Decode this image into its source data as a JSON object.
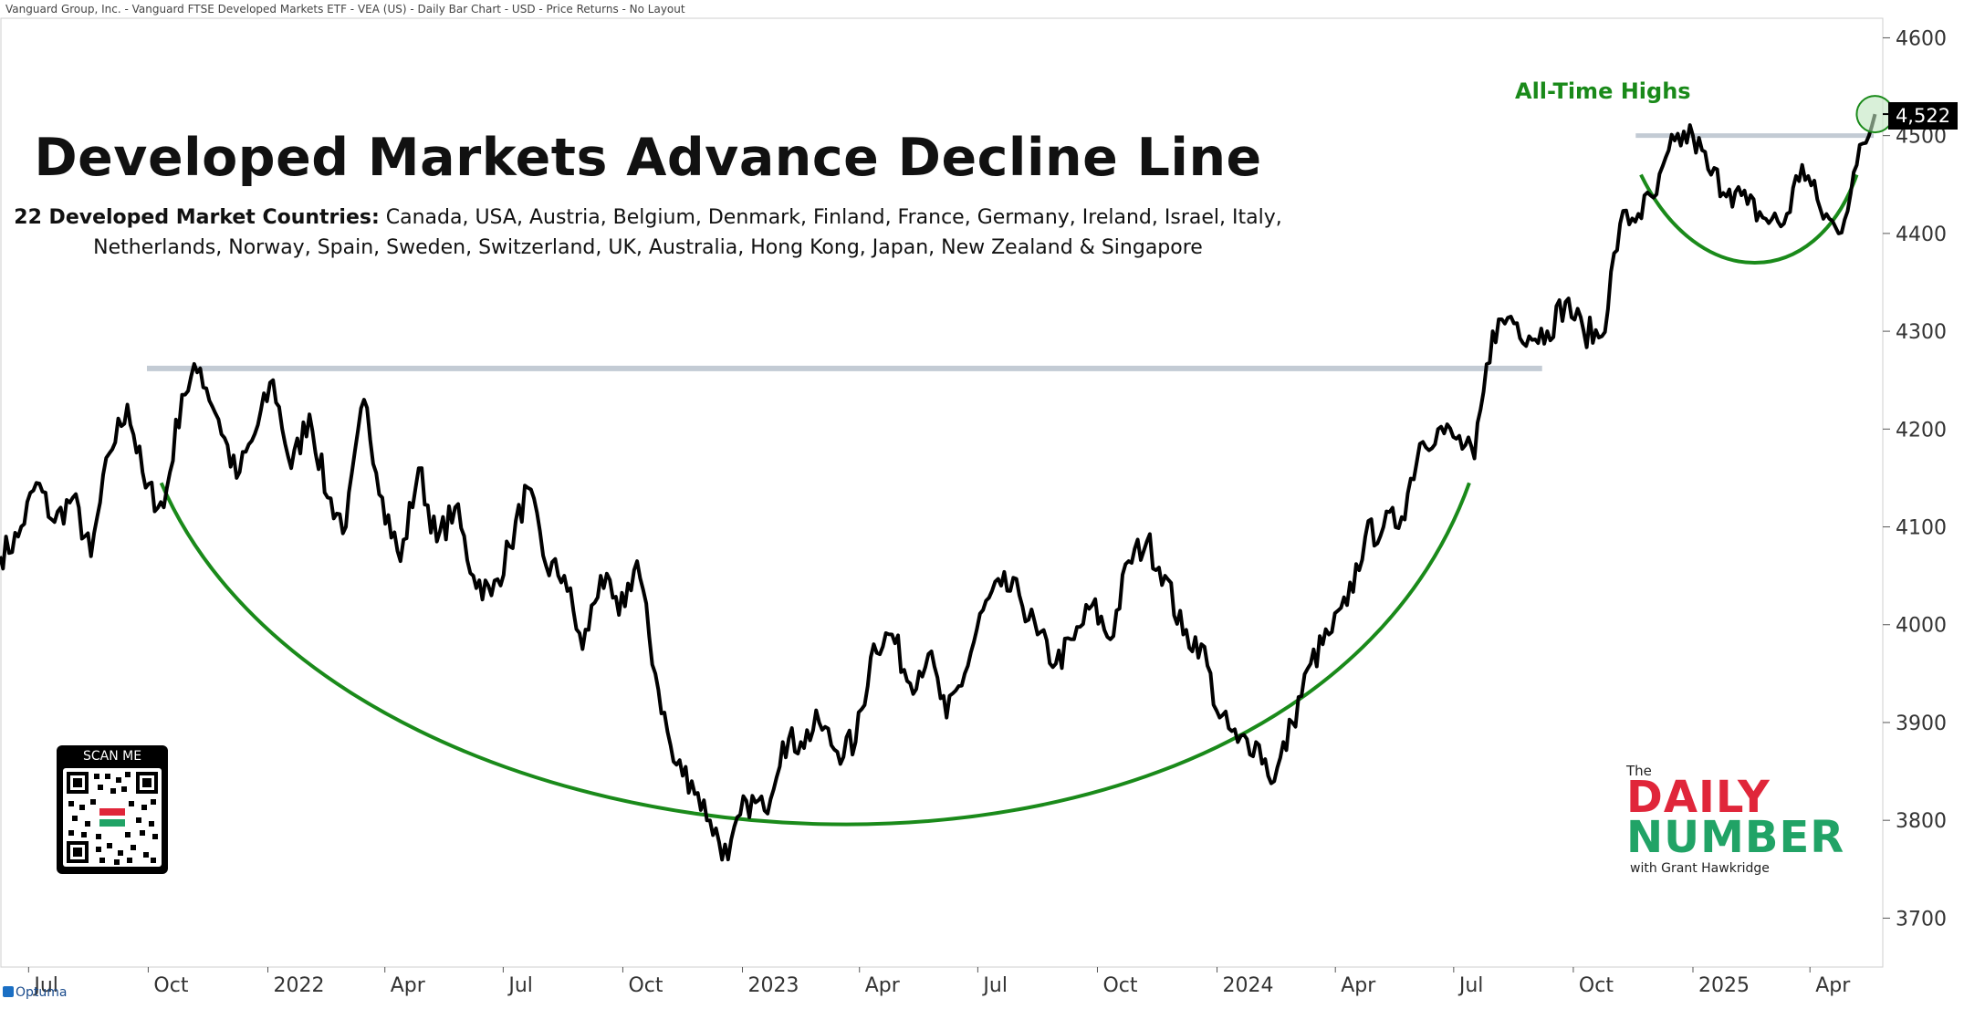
{
  "header": {
    "text": "Vanguard Group, Inc. - Vanguard FTSE Developed Markets ETF - VEA (US) - Daily Bar Chart - USD - Price Returns - No Layout"
  },
  "title": "Developed Markets Advance Decline Line",
  "countries": {
    "label": "22 Developed Market Countries:",
    "line1": " Canada, USA, Austria, Belgium, Denmark, Finland, France, Germany, Ireland, Israel, Italy,",
    "line2": "Netherlands, Norway, Spain, Sweden, Switzerland, UK, Australia, Hong Kong, Japan, New Zealand & Singapore"
  },
  "annotation": {
    "all_time_highs": "All-Time Highs"
  },
  "qr": {
    "caption": "SCAN ME"
  },
  "logo": {
    "the": "The",
    "daily": "DAILY",
    "number": "NUMBER",
    "sub": "with Grant Hawkridge"
  },
  "footer": {
    "brand": "Optuma"
  },
  "colors": {
    "line": "#000000",
    "arc": "#1a8a1a",
    "resistance": "#b8c2cc",
    "label_green": "#1a8a1a"
  },
  "chart_data": {
    "type": "line",
    "xlabel": "",
    "ylabel": "",
    "last_value_label": "4,522",
    "ylim": [
      3650,
      4620
    ],
    "y_ticks": [
      3700,
      3800,
      3900,
      4000,
      4100,
      4200,
      4300,
      4400,
      4500,
      4600
    ],
    "x_ticks": [
      {
        "label": "Jul",
        "date": "2021-07-01"
      },
      {
        "label": "Oct",
        "date": "2021-10-01"
      },
      {
        "label": "2022",
        "date": "2022-01-01"
      },
      {
        "label": "Apr",
        "date": "2022-04-01"
      },
      {
        "label": "Jul",
        "date": "2022-07-01"
      },
      {
        "label": "Oct",
        "date": "2022-10-01"
      },
      {
        "label": "2023",
        "date": "2023-01-01"
      },
      {
        "label": "Apr",
        "date": "2023-04-01"
      },
      {
        "label": "Jul",
        "date": "2023-07-01"
      },
      {
        "label": "Oct",
        "date": "2023-10-01"
      },
      {
        "label": "2024",
        "date": "2024-01-01"
      },
      {
        "label": "Apr",
        "date": "2024-04-01"
      },
      {
        "label": "Jul",
        "date": "2024-07-01"
      },
      {
        "label": "Oct",
        "date": "2024-10-01"
      },
      {
        "label": "2025",
        "date": "2025-01-01"
      },
      {
        "label": "Apr",
        "date": "2025-04-01"
      }
    ],
    "xlim": [
      "2021-06-09",
      "2025-05-27"
    ],
    "series": [
      {
        "values": [
          [
            "2021-06-09",
            4070
          ],
          [
            "2021-06-23",
            4090
          ],
          [
            "2021-07-07",
            4145
          ],
          [
            "2021-07-21",
            4105
          ],
          [
            "2021-08-04",
            4130
          ],
          [
            "2021-08-18",
            4070
          ],
          [
            "2021-09-01",
            4175
          ],
          [
            "2021-09-15",
            4225
          ],
          [
            "2021-09-29",
            4140
          ],
          [
            "2021-10-13",
            4120
          ],
          [
            "2021-10-27",
            4235
          ],
          [
            "2021-11-10",
            4262
          ],
          [
            "2021-11-24",
            4210
          ],
          [
            "2021-12-08",
            4150
          ],
          [
            "2021-12-22",
            4195
          ],
          [
            "2022-01-05",
            4250
          ],
          [
            "2022-01-19",
            4160
          ],
          [
            "2022-02-02",
            4215
          ],
          [
            "2022-02-16",
            4130
          ],
          [
            "2022-03-02",
            4100
          ],
          [
            "2022-03-16",
            4230
          ],
          [
            "2022-03-30",
            4130
          ],
          [
            "2022-04-13",
            4065
          ],
          [
            "2022-04-27",
            4160
          ],
          [
            "2022-05-11",
            4085
          ],
          [
            "2022-05-25",
            4120
          ],
          [
            "2022-06-08",
            4050
          ],
          [
            "2022-06-22",
            4030
          ],
          [
            "2022-07-06",
            4080
          ],
          [
            "2022-07-20",
            4140
          ],
          [
            "2022-08-03",
            4060
          ],
          [
            "2022-08-17",
            4050
          ],
          [
            "2022-08-31",
            3975
          ],
          [
            "2022-09-14",
            4050
          ],
          [
            "2022-09-28",
            4010
          ],
          [
            "2022-10-12",
            4065
          ],
          [
            "2022-10-26",
            3950
          ],
          [
            "2022-11-09",
            3860
          ],
          [
            "2022-11-23",
            3840
          ],
          [
            "2022-12-07",
            3800
          ],
          [
            "2022-12-21",
            3760
          ],
          [
            "2023-01-04",
            3820
          ],
          [
            "2023-01-18",
            3810
          ],
          [
            "2023-02-01",
            3880
          ],
          [
            "2023-02-15",
            3880
          ],
          [
            "2023-03-01",
            3900
          ],
          [
            "2023-03-15",
            3870
          ],
          [
            "2023-03-29",
            3880
          ],
          [
            "2023-04-12",
            3980
          ],
          [
            "2023-04-26",
            3990
          ],
          [
            "2023-05-10",
            3940
          ],
          [
            "2023-05-24",
            3970
          ],
          [
            "2023-06-07",
            3905
          ],
          [
            "2023-06-21",
            3950
          ],
          [
            "2023-07-05",
            4015
          ],
          [
            "2023-07-19",
            4040
          ],
          [
            "2023-08-02",
            4030
          ],
          [
            "2023-08-16",
            3990
          ],
          [
            "2023-08-30",
            3960
          ],
          [
            "2023-09-13",
            3985
          ],
          [
            "2023-09-27",
            4020
          ],
          [
            "2023-10-11",
            3985
          ],
          [
            "2023-10-25",
            4065
          ],
          [
            "2023-11-08",
            4085
          ],
          [
            "2023-11-22",
            4050
          ],
          [
            "2023-12-06",
            3990
          ],
          [
            "2023-12-20",
            3980
          ],
          [
            "2024-01-03",
            3905
          ],
          [
            "2024-01-17",
            3880
          ],
          [
            "2024-01-31",
            3880
          ],
          [
            "2024-02-14",
            3840
          ],
          [
            "2024-02-28",
            3900
          ],
          [
            "2024-03-13",
            3960
          ],
          [
            "2024-03-27",
            3990
          ],
          [
            "2024-04-10",
            4020
          ],
          [
            "2024-04-24",
            4090
          ],
          [
            "2024-05-08",
            4100
          ],
          [
            "2024-05-22",
            4110
          ],
          [
            "2024-06-05",
            4185
          ],
          [
            "2024-06-19",
            4200
          ],
          [
            "2024-07-03",
            4190
          ],
          [
            "2024-07-17",
            4170
          ],
          [
            "2024-07-31",
            4300
          ],
          [
            "2024-08-14",
            4315
          ],
          [
            "2024-08-28",
            4295
          ],
          [
            "2024-09-11",
            4300
          ],
          [
            "2024-09-25",
            4330
          ],
          [
            "2024-10-09",
            4300
          ],
          [
            "2024-10-23",
            4295
          ],
          [
            "2024-11-06",
            4410
          ],
          [
            "2024-11-20",
            4420
          ],
          [
            "2024-12-04",
            4440
          ],
          [
            "2024-12-18",
            4495
          ],
          [
            "2025-01-01",
            4500
          ],
          [
            "2025-01-15",
            4460
          ],
          [
            "2025-01-29",
            4445
          ],
          [
            "2025-02-12",
            4430
          ],
          [
            "2025-02-26",
            4415
          ],
          [
            "2025-03-12",
            4410
          ],
          [
            "2025-03-26",
            4470
          ],
          [
            "2025-04-09",
            4425
          ],
          [
            "2025-04-23",
            4400
          ],
          [
            "2025-05-07",
            4470
          ],
          [
            "2025-05-21",
            4522
          ]
        ]
      }
    ]
  }
}
